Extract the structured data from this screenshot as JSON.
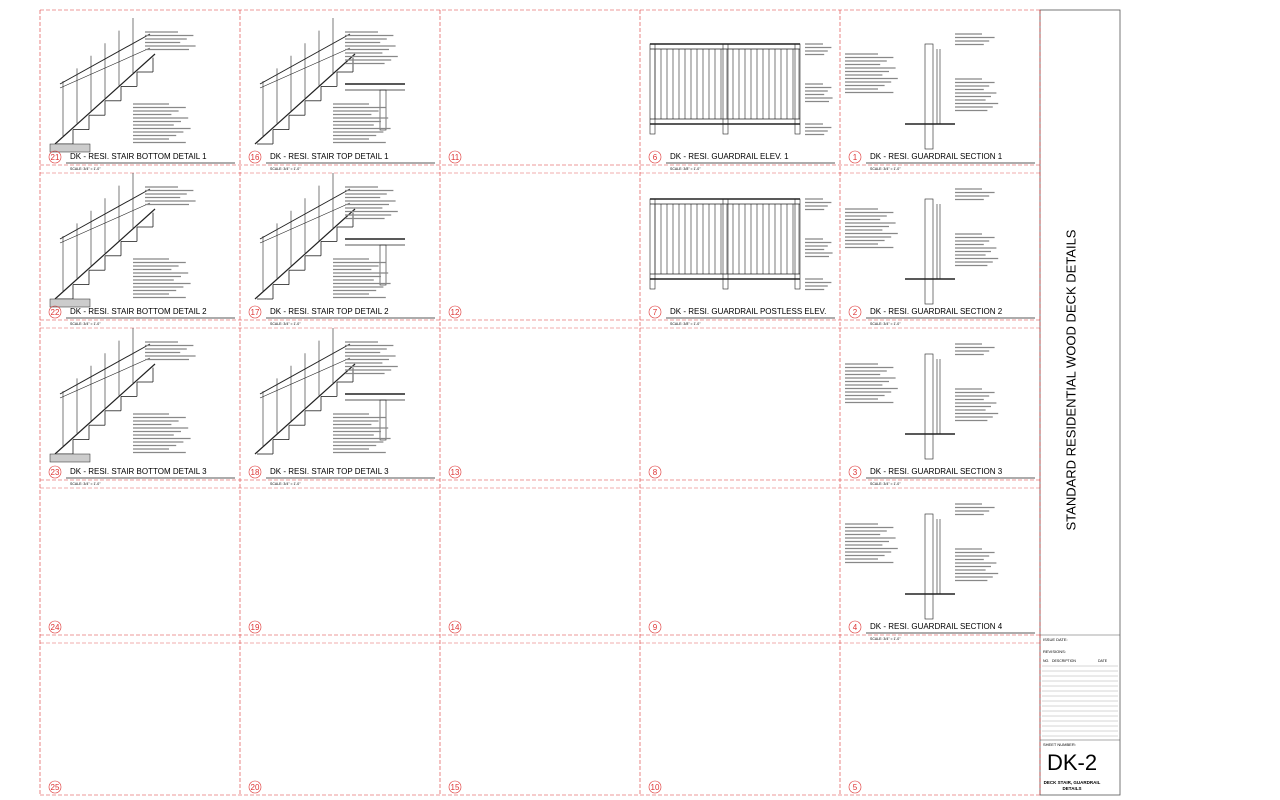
{
  "sheet": {
    "cells": [
      {
        "number": "21",
        "title": "DK - RESI. STAIR BOTTOM DETAIL 1",
        "scale": "SCALE: 3/4\" = 1'-0\""
      },
      {
        "number": "16",
        "title": "DK - RESI. STAIR TOP DETAIL 1",
        "scale": "SCALE: 3/4\" = 1'-0\""
      },
      {
        "number": "11"
      },
      {
        "number": "6",
        "title": "DK - RESI. GUARDRAIL ELEV. 1",
        "scale": "SCALE: 3/8\" = 1'-0\""
      },
      {
        "number": "1",
        "title": "DK - RESI. GUARDRAIL SECTION 1",
        "scale": "SCALE: 3/4\" = 1'-0\""
      },
      {
        "number": "22",
        "title": "DK - RESI. STAIR BOTTOM DETAIL 2",
        "scale": "SCALE: 3/4\" = 1'-0\""
      },
      {
        "number": "17",
        "title": "DK - RESI. STAIR TOP DETAIL 2",
        "scale": "SCALE: 3/4\" = 1'-0\""
      },
      {
        "number": "12"
      },
      {
        "number": "7",
        "title": "DK - RESI. GUARDRAIL POSTLESS ELEV.",
        "scale": "SCALE: 3/8\" = 1'-0\""
      },
      {
        "number": "2",
        "title": "DK - RESI. GUARDRAIL SECTION 2",
        "scale": "SCALE: 3/4\" = 1'-0\""
      },
      {
        "number": "23",
        "title": "DK - RESI. STAIR BOTTOM DETAIL 3",
        "scale": "SCALE: 3/4\" = 1'-0\""
      },
      {
        "number": "18",
        "title": "DK - RESI. STAIR TOP DETAIL 3",
        "scale": "SCALE: 3/4\" = 1'-0\""
      },
      {
        "number": "13"
      },
      {
        "number": "8"
      },
      {
        "number": "3",
        "title": "DK - RESI. GUARDRAIL SECTION 3",
        "scale": "SCALE: 3/4\" = 1'-0\""
      },
      {
        "number": "24"
      },
      {
        "number": "19"
      },
      {
        "number": "14"
      },
      {
        "number": "9"
      },
      {
        "number": "4",
        "title": "DK - RESI. GUARDRAIL SECTION 4",
        "scale": "SCALE: 3/4\" = 1'-0\""
      },
      {
        "number": "25"
      },
      {
        "number": "20"
      },
      {
        "number": "15"
      },
      {
        "number": "10"
      },
      {
        "number": "5"
      }
    ],
    "title_vertical": "STANDARD RESIDENTIAL WOOD DECK DETAILS",
    "issue_date_label": "ISSUE DATE:",
    "revisions_label": "REVISIONS:",
    "revision_columns": [
      "NO.",
      "DESCRIPTION",
      "DATE"
    ],
    "sheet_number_label": "SHEET NUMBER:",
    "sheet_number": "DK-2",
    "sheet_title": [
      "DECK STAIR, GUARDRAIL",
      "DETAILS"
    ]
  }
}
